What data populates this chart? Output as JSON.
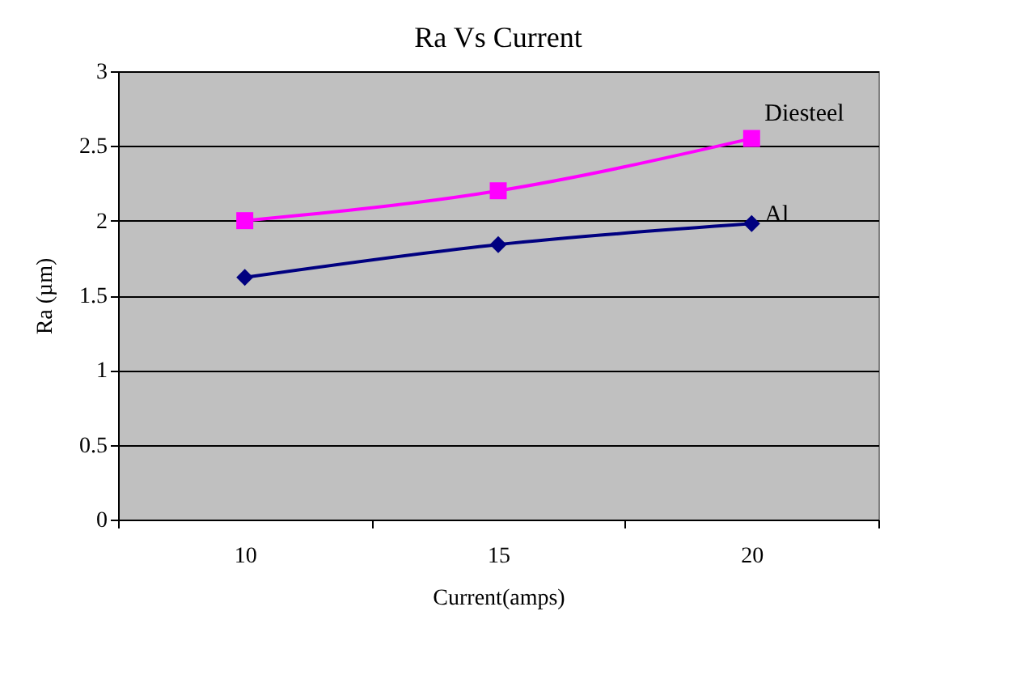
{
  "chart_data": {
    "type": "line",
    "title": "Ra Vs Current",
    "xlabel": "Current(amps)",
    "ylabel": "Ra (µm)",
    "categories": [
      "10",
      "15",
      "20"
    ],
    "series": [
      {
        "name": "Diesteel",
        "color": "#ff00ff",
        "marker": "square",
        "values": [
          2.0,
          2.2,
          2.55
        ]
      },
      {
        "name": "Al",
        "color": "#000080",
        "marker": "diamond",
        "values": [
          1.62,
          1.84,
          1.98
        ]
      }
    ],
    "ylim": [
      0,
      3
    ],
    "yticks": [
      0,
      0.5,
      1,
      1.5,
      2,
      2.5,
      3
    ],
    "grid": "y",
    "legend": false
  }
}
